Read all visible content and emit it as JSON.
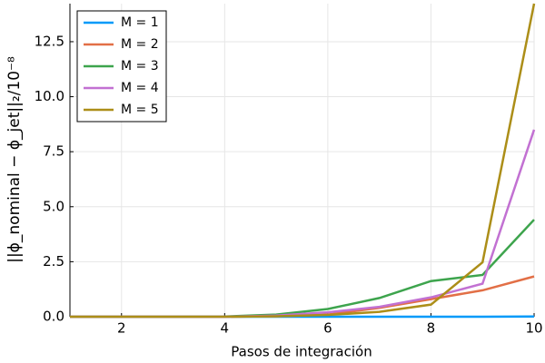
{
  "chart_data": {
    "type": "line",
    "x_label": "Pasos de integración",
    "y_label": "||ϕ_nominal − ϕ_jet||₂/10⁻⁸",
    "x": [
      1,
      2,
      3,
      4,
      5,
      6,
      7,
      8,
      9,
      10
    ],
    "series": [
      {
        "name": "M = 1",
        "color": "#009af9",
        "values": [
          0,
          0,
          0,
          0,
          0,
          0,
          0,
          0,
          0,
          0.01
        ]
      },
      {
        "name": "M = 2",
        "color": "#e26f46",
        "values": [
          0,
          0,
          0,
          0,
          0.02,
          0.1,
          0.4,
          0.8,
          1.2,
          1.83
        ]
      },
      {
        "name": "M = 3",
        "color": "#3da44d",
        "values": [
          0,
          0,
          0,
          0.01,
          0.1,
          0.35,
          0.85,
          1.62,
          1.9,
          4.41
        ]
      },
      {
        "name": "M = 4",
        "color": "#c271d2",
        "values": [
          0,
          0,
          0,
          0,
          0.05,
          0.2,
          0.45,
          0.88,
          1.5,
          8.5
        ]
      },
      {
        "name": "M = 5",
        "color": "#ac8e18",
        "values": [
          0,
          0,
          0,
          0,
          0.02,
          0.08,
          0.22,
          0.55,
          2.47,
          14.23
        ]
      }
    ],
    "xlim": [
      1,
      10
    ],
    "xticks": [
      2,
      4,
      6,
      8,
      10
    ],
    "ylim": [
      0,
      14.23
    ],
    "yticks": [
      {
        "value": 0,
        "label": "0.0"
      },
      2.5,
      {
        "value": 5,
        "label": "5.0"
      },
      7.5,
      {
        "value": 10,
        "label": "10.0"
      },
      12.5
    ],
    "grid": true,
    "legend": "top-left"
  }
}
